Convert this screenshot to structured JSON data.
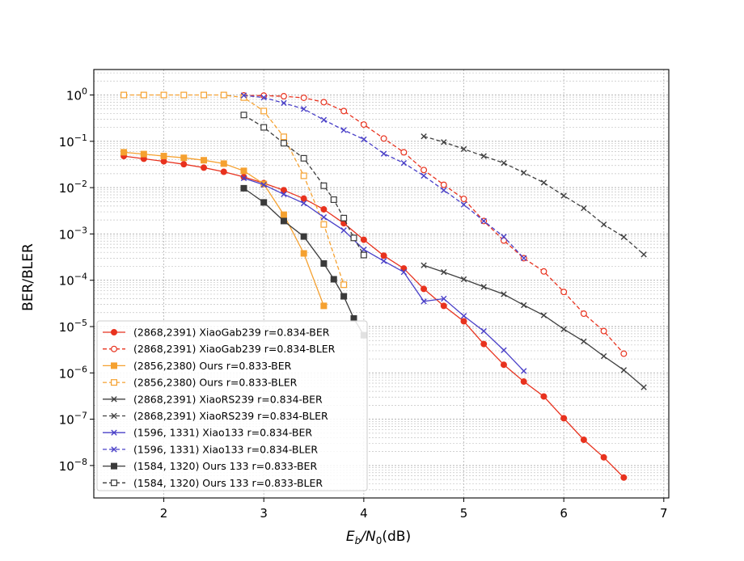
{
  "chart_data": {
    "type": "line",
    "title": "",
    "xlabel_main": "E",
    "xlabel_sub": "b",
    "xlabel_den": "/N",
    "xlabel_den_sub": "0",
    "xlabel_unit": "(dB)",
    "ylabel": "BER/BLER",
    "xlim": [
      1.3,
      7.05
    ],
    "ylim_log10": [
      -8.7,
      0.55
    ],
    "yscale": "log",
    "grid": true,
    "legend_position": "lower-left",
    "x_ticks": [
      2,
      3,
      4,
      5,
      6,
      7
    ],
    "x_tick_labels": [
      "2",
      "3",
      "4",
      "5",
      "6",
      "7"
    ],
    "y_ticks_exp": [
      0,
      -1,
      -2,
      -3,
      -4,
      -5,
      -6,
      -7,
      -8
    ],
    "y_tick_base": "10",
    "y_tick_exps": [
      "0",
      "−1",
      "−2",
      "−3",
      "−4",
      "−5",
      "−6",
      "−7",
      "−8"
    ],
    "series": [
      {
        "name": "(2868,2391) XiaoGab239 r=0.834-BER",
        "color": "#e8321e",
        "dash": false,
        "marker": "circle",
        "filled": true,
        "x": [
          1.6,
          1.8,
          2.0,
          2.2,
          2.4,
          2.6,
          2.8,
          3.0,
          3.2,
          3.4,
          3.6,
          3.8,
          4.0,
          4.2,
          4.4,
          4.6,
          4.8,
          5.0,
          5.2,
          5.4,
          5.6,
          5.8,
          6.0,
          6.2,
          6.4,
          6.6
        ],
        "y": [
          0.048,
          0.042,
          0.037,
          0.032,
          0.027,
          0.022,
          0.017,
          0.0125,
          0.0088,
          0.0058,
          0.0034,
          0.0017,
          0.00075,
          0.00034,
          0.00018,
          6.5e-05,
          2.8e-05,
          1.3e-05,
          4.2e-06,
          1.5e-06,
          6.5e-07,
          3.1e-07,
          1.05e-07,
          3.6e-08,
          1.5e-08,
          5.5e-09
        ]
      },
      {
        "name": "(2868,2391) XiaoGab239 r=0.834-BLER",
        "color": "#e8321e",
        "dash": true,
        "marker": "circle",
        "filled": false,
        "x": [
          2.8,
          3.0,
          3.2,
          3.4,
          3.6,
          3.8,
          4.0,
          4.2,
          4.4,
          4.6,
          4.8,
          5.0,
          5.2,
          5.4,
          5.6,
          5.8,
          6.0,
          6.2,
          6.4,
          6.6
        ],
        "y": [
          0.98,
          0.97,
          0.94,
          0.87,
          0.7,
          0.45,
          0.23,
          0.115,
          0.058,
          0.024,
          0.0115,
          0.0057,
          0.0019,
          0.00072,
          0.0003,
          0.000155,
          5.6e-05,
          1.9e-05,
          8e-06,
          2.6e-06
        ]
      },
      {
        "name": "(2856,2380) Ours r=0.833-BER",
        "color": "#f5a130",
        "dash": false,
        "marker": "square",
        "filled": true,
        "x": [
          1.6,
          1.8,
          2.0,
          2.2,
          2.4,
          2.6,
          2.8,
          3.0,
          3.2,
          3.4,
          3.6
        ],
        "y": [
          0.058,
          0.053,
          0.048,
          0.044,
          0.039,
          0.033,
          0.023,
          0.012,
          0.0026,
          0.00038,
          2.8e-05
        ]
      },
      {
        "name": "(2856,2380) Ours r=0.833-BLER",
        "color": "#f5a130",
        "dash": true,
        "marker": "square",
        "filled": false,
        "x": [
          1.6,
          1.8,
          2.0,
          2.2,
          2.4,
          2.6,
          2.8,
          3.0,
          3.2,
          3.4,
          3.6,
          3.8
        ],
        "y": [
          1.0,
          1.0,
          1.0,
          1.0,
          1.0,
          1.0,
          0.88,
          0.45,
          0.125,
          0.018,
          0.0016,
          8e-05
        ]
      },
      {
        "name": "(2868,2391) XiaoRS239 r=0.834-BER",
        "color": "#404040",
        "dash": false,
        "marker": "x",
        "filled": false,
        "x": [
          4.6,
          4.8,
          5.0,
          5.2,
          5.4,
          5.6,
          5.8,
          6.0,
          6.2,
          6.4,
          6.6,
          6.8
        ],
        "y": [
          0.00021,
          0.00015,
          0.000105,
          7.2e-05,
          5e-05,
          2.9e-05,
          1.75e-05,
          8.8e-06,
          4.8e-06,
          2.3e-06,
          1.15e-06,
          4.9e-07
        ]
      },
      {
        "name": "(2868,2391) XiaoRS239 r=0.834-BLER",
        "color": "#404040",
        "dash": true,
        "marker": "x",
        "filled": false,
        "x": [
          4.6,
          4.8,
          5.0,
          5.2,
          5.4,
          5.6,
          5.8,
          6.0,
          6.2,
          6.4,
          6.6,
          6.8
        ],
        "y": [
          0.128,
          0.096,
          0.068,
          0.048,
          0.034,
          0.021,
          0.0128,
          0.0067,
          0.0036,
          0.0016,
          0.00086,
          0.00036
        ]
      },
      {
        "name": "(1596, 1331) Xiao133 r=0.834-BER",
        "color": "#4a40c8",
        "dash": false,
        "marker": "x",
        "filled": false,
        "x": [
          2.8,
          3.0,
          3.2,
          3.4,
          3.6,
          3.8,
          4.0,
          4.2,
          4.4,
          4.6,
          4.8,
          5.0,
          5.2,
          5.4,
          5.6
        ],
        "y": [
          0.016,
          0.0115,
          0.0072,
          0.0046,
          0.0023,
          0.0012,
          0.00046,
          0.00026,
          0.00015,
          3.5e-05,
          4e-05,
          1.7e-05,
          8e-06,
          3.1e-06,
          1.1e-06
        ]
      },
      {
        "name": "(1596, 1331) Xiao133 r=0.834-BLER",
        "color": "#4a40c8",
        "dash": true,
        "marker": "x",
        "filled": false,
        "x": [
          2.8,
          3.0,
          3.2,
          3.4,
          3.6,
          3.8,
          4.0,
          4.2,
          4.4,
          4.6,
          4.8,
          5.0,
          5.2,
          5.4,
          5.6
        ],
        "y": [
          0.98,
          0.88,
          0.67,
          0.5,
          0.29,
          0.175,
          0.11,
          0.054,
          0.034,
          0.018,
          0.0088,
          0.0043,
          0.0019,
          0.00087,
          0.0003
        ]
      },
      {
        "name": "(1584, 1320) Ours 133 r=0.833-BER",
        "color": "#3a3a3a",
        "dash": false,
        "marker": "square",
        "filled": true,
        "x": [
          2.8,
          3.0,
          3.2,
          3.4,
          3.6,
          3.7,
          3.8,
          3.9,
          4.0
        ],
        "y": [
          0.0097,
          0.0048,
          0.0019,
          0.00088,
          0.00023,
          0.000105,
          4.5e-05,
          1.5e-05,
          6.5e-06
        ]
      },
      {
        "name": "(1584, 1320) Ours 133 r=0.833-BLER",
        "color": "#3a3a3a",
        "dash": true,
        "marker": "square",
        "filled": false,
        "x": [
          2.8,
          3.0,
          3.2,
          3.4,
          3.6,
          3.7,
          3.8,
          3.9,
          4.0
        ],
        "y": [
          0.37,
          0.2,
          0.091,
          0.043,
          0.011,
          0.0055,
          0.0022,
          0.00082,
          0.00035
        ]
      }
    ]
  }
}
